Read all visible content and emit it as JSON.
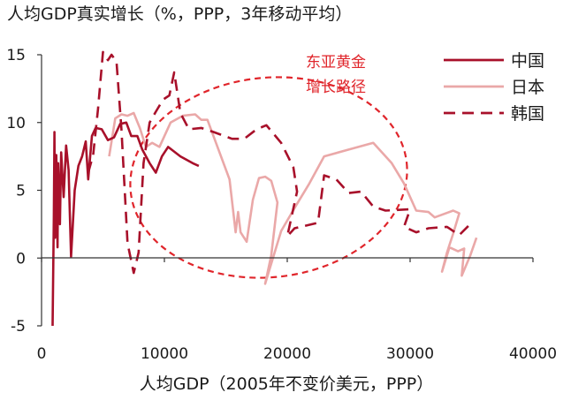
{
  "chart_data": {
    "type": "line",
    "title": "人均GDP真实增长（%，PPP，3年移动平均）",
    "xlabel": "人均GDP（2005年不变价美元，PPP）",
    "ylabel": "",
    "xlim": [
      0,
      40000
    ],
    "ylim": [
      -5,
      15
    ],
    "x_ticks": [
      0,
      10000,
      20000,
      30000,
      40000
    ],
    "y_ticks": [
      -5,
      0,
      5,
      10,
      15
    ],
    "x_tick_labels": [
      "0",
      "10000",
      "20000",
      "30000",
      "40000"
    ],
    "y_tick_labels": [
      "-5",
      "0",
      "5",
      "10",
      "15"
    ],
    "legend_position": "top-right",
    "annotation": {
      "lines": [
        "东亚黄金",
        "增长路径"
      ],
      "color": "#e0252b"
    },
    "series": [
      {
        "name": "中国",
        "color": "#a8102a",
        "dash": "solid",
        "points": [
          [
            900,
            -5.0
          ],
          [
            1000,
            3.0
          ],
          [
            1050,
            9.3
          ],
          [
            1100,
            1.5
          ],
          [
            1200,
            7.6
          ],
          [
            1300,
            0.8
          ],
          [
            1350,
            7.0
          ],
          [
            1500,
            2.5
          ],
          [
            1600,
            7.8
          ],
          [
            1800,
            4.5
          ],
          [
            2000,
            8.3
          ],
          [
            2200,
            6.5
          ],
          [
            2400,
            0.1
          ],
          [
            2700,
            5.0
          ],
          [
            3000,
            6.8
          ],
          [
            3300,
            7.5
          ],
          [
            3600,
            8.6
          ],
          [
            3800,
            5.8
          ],
          [
            4100,
            9.0
          ],
          [
            4400,
            9.6
          ],
          [
            4900,
            9.5
          ],
          [
            5400,
            8.7
          ],
          [
            5900,
            8.9
          ],
          [
            6400,
            9.9
          ],
          [
            6900,
            10.0
          ],
          [
            7300,
            9.0
          ],
          [
            7800,
            9.0
          ],
          [
            8200,
            8.0
          ],
          [
            8800,
            7.0
          ],
          [
            9300,
            6.3
          ],
          [
            9800,
            7.5
          ],
          [
            10300,
            8.2
          ],
          [
            11300,
            7.5
          ],
          [
            12300,
            7.0
          ],
          [
            12800,
            6.8
          ]
        ]
      },
      {
        "name": "日本",
        "color": "#eaa8a8",
        "dash": "solid",
        "points": [
          [
            5500,
            7.5
          ],
          [
            6000,
            10.3
          ],
          [
            6500,
            10.6
          ],
          [
            7000,
            10.5
          ],
          [
            7500,
            10.7
          ],
          [
            8000,
            9.6
          ],
          [
            8500,
            8.2
          ],
          [
            9000,
            8.5
          ],
          [
            9600,
            8.2
          ],
          [
            10500,
            10.0
          ],
          [
            11500,
            10.5
          ],
          [
            12500,
            10.6
          ],
          [
            13000,
            10.2
          ],
          [
            13500,
            10.2
          ],
          [
            14400,
            8.0
          ],
          [
            15300,
            5.8
          ],
          [
            15800,
            1.9
          ],
          [
            16000,
            3.4
          ],
          [
            16200,
            1.9
          ],
          [
            16700,
            1.2
          ],
          [
            17200,
            4.3
          ],
          [
            17700,
            5.9
          ],
          [
            18200,
            6.0
          ],
          [
            18700,
            5.7
          ],
          [
            19200,
            4.1
          ],
          [
            18700,
            0.2
          ],
          [
            18200,
            -1.9
          ],
          [
            19500,
            2.0
          ],
          [
            20800,
            4.0
          ],
          [
            21800,
            5.5
          ],
          [
            23000,
            7.5
          ],
          [
            25000,
            8.0
          ],
          [
            27000,
            8.5
          ],
          [
            28500,
            7.0
          ],
          [
            29500,
            5.5
          ],
          [
            30500,
            3.5
          ],
          [
            31500,
            3.4
          ],
          [
            32000,
            3.0
          ],
          [
            33500,
            3.5
          ],
          [
            34000,
            3.3
          ],
          [
            33500,
            1.8
          ],
          [
            33000,
            0.4
          ],
          [
            32600,
            -1.0
          ],
          [
            33200,
            0.8
          ],
          [
            33900,
            0.5
          ],
          [
            34400,
            0.7
          ],
          [
            34200,
            -1.3
          ],
          [
            34900,
            0.2
          ],
          [
            35400,
            1.5
          ]
        ]
      },
      {
        "name": "韩国",
        "color": "#a8102a",
        "dash": "dashed",
        "points": [
          [
            3800,
            6.3
          ],
          [
            4200,
            7.6
          ],
          [
            4600,
            11.0
          ],
          [
            5000,
            15.2
          ],
          [
            5400,
            14.6
          ],
          [
            5700,
            15.0
          ],
          [
            6100,
            14.5
          ],
          [
            6500,
            9.5
          ],
          [
            7000,
            1.1
          ],
          [
            7500,
            -1.1
          ],
          [
            7900,
            0.4
          ],
          [
            8300,
            7.0
          ],
          [
            8800,
            10.0
          ],
          [
            9300,
            10.8
          ],
          [
            9900,
            11.7
          ],
          [
            10400,
            12.0
          ],
          [
            10800,
            13.7
          ],
          [
            11300,
            10.7
          ],
          [
            12000,
            9.5
          ],
          [
            13000,
            9.6
          ],
          [
            14000,
            9.3
          ],
          [
            15500,
            8.8
          ],
          [
            16500,
            8.8
          ],
          [
            17500,
            9.5
          ],
          [
            18300,
            9.8
          ],
          [
            19500,
            8.5
          ],
          [
            20500,
            6.7
          ],
          [
            20800,
            4.9
          ],
          [
            20000,
            1.6
          ],
          [
            20600,
            2.2
          ],
          [
            22500,
            2.6
          ],
          [
            23000,
            6.1
          ],
          [
            24000,
            5.8
          ],
          [
            25000,
            4.8
          ],
          [
            26000,
            4.9
          ],
          [
            27000,
            3.8
          ],
          [
            28000,
            3.5
          ],
          [
            30000,
            3.6
          ],
          [
            29500,
            2.3
          ],
          [
            30500,
            1.9
          ],
          [
            31500,
            2.2
          ],
          [
            33000,
            2.3
          ],
          [
            34000,
            1.7
          ],
          [
            35000,
            2.6
          ]
        ]
      }
    ]
  }
}
